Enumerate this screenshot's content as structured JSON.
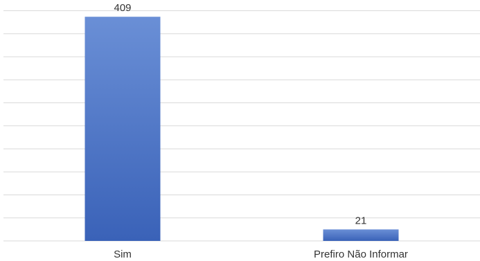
{
  "chart_data": {
    "type": "bar",
    "title": "",
    "xlabel": "",
    "ylabel": "",
    "categories": [
      "Sim",
      "Prefiro Não Informar"
    ],
    "values": [
      409,
      21
    ],
    "data_labels": [
      "409",
      "21"
    ],
    "ylim": [
      0,
      420
    ],
    "grid": true,
    "legend": "none",
    "bar_color": "#4472c4",
    "bar_color_light": "#6a8fd6",
    "bar_color_dark": "#3a62b8"
  }
}
